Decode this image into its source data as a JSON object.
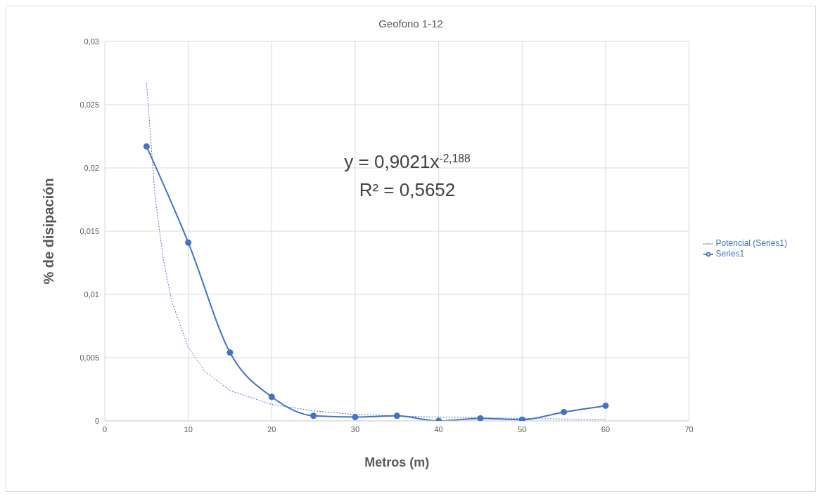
{
  "chart_data": {
    "type": "line",
    "title": "Geofono 1-12",
    "xlabel": "Metros  (m)",
    "ylabel": "% de disipación",
    "annotations": [
      "y = 0,9021x$^{-2,188}$",
      "R² = 0,5652"
    ],
    "xlim": [
      0,
      70
    ],
    "xticks": [
      0,
      10,
      20,
      30,
      40,
      50,
      60,
      70
    ],
    "ylim": [
      0,
      0.03
    ],
    "yticks": [
      0,
      {
        "value": 0.005,
        "label": "0,005"
      },
      {
        "value": 0.01,
        "label": "0,01"
      },
      {
        "value": 0.015,
        "label": "0,015"
      },
      {
        "value": 0.02,
        "label": "0,02"
      },
      {
        "value": 0.025,
        "label": "0,025"
      },
      {
        "value": 0.03,
        "label": "0,03"
      }
    ],
    "grid": true,
    "legend": "right",
    "series": [
      {
        "name": "Series1",
        "color": "#4472c4",
        "marker": "circle",
        "line_style": "solid",
        "x": [
          5,
          10,
          15,
          20,
          25,
          30,
          35,
          40,
          45,
          50,
          55,
          60
        ],
        "values": [
          0.0217,
          0.0141,
          0.0054,
          0.0019,
          0.0004,
          0.0003,
          0.0004,
          0,
          0.0002,
          0.0001,
          0.0007,
          0.0012
        ]
      },
      {
        "name": "Potencial (Series1)",
        "color": "#4472c4",
        "marker": "none",
        "line_style": "dotted",
        "x": [
          5,
          6,
          7,
          8,
          10,
          12,
          15,
          20,
          25,
          30,
          40,
          50,
          60
        ],
        "values": [
          0.0267,
          0.0179,
          0.0128,
          0.0095,
          0.0058,
          0.0039,
          0.0024,
          0.0013,
          0.0008,
          0.0005,
          0.0003,
          0.0002,
          0.0001
        ]
      }
    ]
  }
}
